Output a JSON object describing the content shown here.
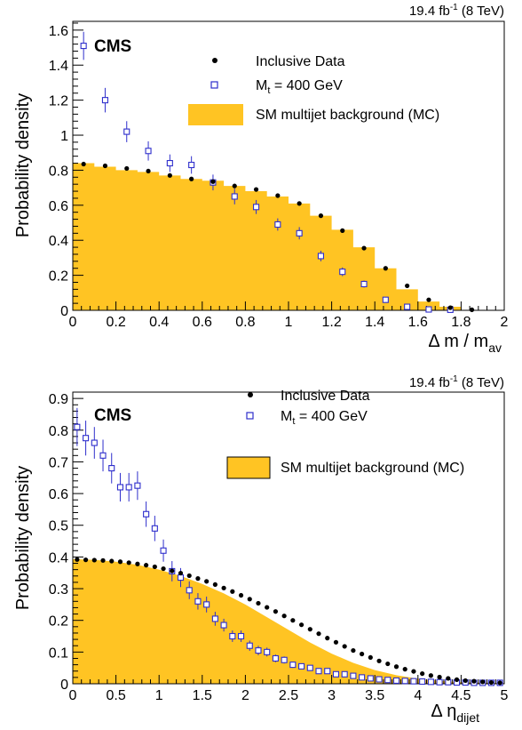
{
  "chart_data": [
    {
      "type": "bar",
      "lumi_label": "19.4 fb",
      "lumi_exp": "-1",
      "energy_label": " (8 TeV)",
      "cms_label": "CMS",
      "ylabel": "Probability density",
      "xlabel_main": "Δ m / m",
      "xlabel_sub": "av",
      "xlim": [
        0,
        2
      ],
      "ylim": [
        0,
        1.65
      ],
      "xticks": [
        0,
        0.2,
        0.4,
        0.6,
        0.8,
        1,
        1.2,
        1.4,
        1.6,
        1.8,
        2
      ],
      "yticks": [
        0,
        0.2,
        0.4,
        0.6,
        0.8,
        1,
        1.2,
        1.4,
        1.6
      ],
      "xtick_labels": [
        "0",
        "0.2",
        "0.4",
        "0.6",
        "0.8",
        "1",
        "1.2",
        "1.4",
        "1.6",
        "1.8",
        "2"
      ],
      "ytick_labels": [
        "0",
        "0.2",
        "0.4",
        "0.6",
        "0.8",
        "1",
        "1.2",
        "1.4",
        "1.6"
      ],
      "legend": {
        "data_label": "Inclusive Data",
        "signal_label_pre": "M",
        "signal_label_sub": "t",
        "signal_label_post": " = 400 GeV",
        "bkg_label": "SM multijet background (MC)"
      },
      "colors": {
        "background": "#ffc423",
        "signal": "#2e2ecc",
        "data": "#000000"
      },
      "background_mc": {
        "bin_edges": [
          0,
          0.1,
          0.2,
          0.3,
          0.4,
          0.5,
          0.6,
          0.7,
          0.8,
          0.9,
          1.0,
          1.1,
          1.2,
          1.3,
          1.4,
          1.5,
          1.6,
          1.7,
          1.8
        ],
        "values": [
          0.84,
          0.82,
          0.8,
          0.79,
          0.77,
          0.75,
          0.74,
          0.71,
          0.68,
          0.65,
          0.61,
          0.54,
          0.46,
          0.36,
          0.24,
          0.12,
          0.05,
          0.02
        ]
      },
      "inclusive_data": {
        "x": [
          0.05,
          0.15,
          0.25,
          0.35,
          0.45,
          0.55,
          0.65,
          0.75,
          0.85,
          0.95,
          1.05,
          1.15,
          1.25,
          1.35,
          1.45,
          1.55,
          1.65,
          1.75,
          1.85
        ],
        "y": [
          0.835,
          0.825,
          0.81,
          0.795,
          0.77,
          0.75,
          0.735,
          0.71,
          0.69,
          0.655,
          0.61,
          0.54,
          0.455,
          0.355,
          0.24,
          0.14,
          0.06,
          0.015,
          0.003
        ]
      },
      "signal_mt400": {
        "x": [
          0.05,
          0.15,
          0.25,
          0.35,
          0.45,
          0.55,
          0.65,
          0.75,
          0.85,
          0.95,
          1.05,
          1.15,
          1.25,
          1.35,
          1.45,
          1.55,
          1.65,
          1.75
        ],
        "y": [
          1.51,
          1.2,
          1.02,
          0.91,
          0.84,
          0.83,
          0.73,
          0.65,
          0.59,
          0.49,
          0.44,
          0.31,
          0.22,
          0.15,
          0.06,
          0.02,
          0.005,
          0.003
        ],
        "err": [
          0.08,
          0.07,
          0.06,
          0.055,
          0.05,
          0.05,
          0.045,
          0.045,
          0.04,
          0.035,
          0.035,
          0.03,
          0.025,
          0.02,
          0.015,
          0.01,
          0.005,
          0.003
        ]
      }
    },
    {
      "type": "bar",
      "lumi_label": "19.4 fb",
      "lumi_exp": "-1",
      "energy_label": " (8 TeV)",
      "cms_label": "CMS",
      "ylabel": "Probability density",
      "xlabel_main": "Δ η",
      "xlabel_sub": "dijet",
      "xlim": [
        0,
        5
      ],
      "ylim": [
        0,
        0.92
      ],
      "xticks": [
        0,
        0.5,
        1,
        1.5,
        2,
        2.5,
        3,
        3.5,
        4,
        4.5,
        5
      ],
      "yticks": [
        0,
        0.1,
        0.2,
        0.3,
        0.4,
        0.5,
        0.6,
        0.7,
        0.8,
        0.9
      ],
      "xtick_labels": [
        "0",
        "0.5",
        "1",
        "1.5",
        "2",
        "2.5",
        "3",
        "3.5",
        "4",
        "4.5",
        "5"
      ],
      "ytick_labels": [
        "0",
        "0.1",
        "0.2",
        "0.3",
        "0.4",
        "0.5",
        "0.6",
        "0.7",
        "0.8",
        "0.9"
      ],
      "legend": {
        "data_label": "Inclusive Data",
        "signal_label_pre": "M",
        "signal_label_sub": "t",
        "signal_label_post": " = 400 GeV",
        "bkg_label": "SM multijet background (MC)"
      },
      "colors": {
        "background": "#ffc423",
        "signal": "#2e2ecc",
        "data": "#000000"
      },
      "background_mc": {
        "x": [
          0.0,
          0.25,
          0.5,
          0.75,
          1.0,
          1.25,
          1.5,
          1.75,
          2.0,
          2.25,
          2.5,
          2.75,
          3.0,
          3.25,
          3.5,
          3.75,
          4.0,
          4.25,
          4.5,
          4.75,
          5.0
        ],
        "y": [
          0.393,
          0.391,
          0.385,
          0.375,
          0.36,
          0.34,
          0.315,
          0.285,
          0.25,
          0.21,
          0.17,
          0.13,
          0.095,
          0.066,
          0.043,
          0.027,
          0.016,
          0.009,
          0.005,
          0.003,
          0.002
        ]
      },
      "inclusive_data": {
        "x": [
          0.05,
          0.15,
          0.25,
          0.35,
          0.45,
          0.55,
          0.65,
          0.75,
          0.85,
          0.95,
          1.05,
          1.15,
          1.25,
          1.35,
          1.45,
          1.55,
          1.65,
          1.75,
          1.85,
          1.95,
          2.05,
          2.15,
          2.25,
          2.35,
          2.45,
          2.55,
          2.65,
          2.75,
          2.85,
          2.95,
          3.05,
          3.15,
          3.25,
          3.35,
          3.45,
          3.55,
          3.65,
          3.75,
          3.85,
          3.95,
          4.05,
          4.15,
          4.25,
          4.35,
          4.45,
          4.55,
          4.65,
          4.75,
          4.85,
          4.95
        ],
        "y": [
          0.392,
          0.391,
          0.39,
          0.389,
          0.387,
          0.385,
          0.382,
          0.378,
          0.374,
          0.369,
          0.363,
          0.356,
          0.349,
          0.341,
          0.332,
          0.323,
          0.313,
          0.302,
          0.291,
          0.279,
          0.267,
          0.254,
          0.241,
          0.228,
          0.214,
          0.2,
          0.186,
          0.172,
          0.158,
          0.144,
          0.131,
          0.118,
          0.105,
          0.094,
          0.083,
          0.072,
          0.063,
          0.054,
          0.046,
          0.039,
          0.032,
          0.026,
          0.021,
          0.017,
          0.013,
          0.01,
          0.008,
          0.006,
          0.004,
          0.003
        ]
      },
      "signal_mt400": {
        "x": [
          0.05,
          0.15,
          0.25,
          0.35,
          0.45,
          0.55,
          0.65,
          0.75,
          0.85,
          0.95,
          1.05,
          1.15,
          1.25,
          1.35,
          1.45,
          1.55,
          1.65,
          1.75,
          1.85,
          1.95,
          2.05,
          2.15,
          2.25,
          2.35,
          2.45,
          2.55,
          2.65,
          2.75,
          2.85,
          2.95,
          3.05,
          3.15,
          3.25,
          3.35,
          3.45,
          3.55,
          3.65,
          3.75,
          3.85,
          3.95,
          4.05,
          4.15,
          4.25,
          4.35,
          4.45,
          4.55,
          4.65,
          4.75,
          4.85,
          4.95
        ],
        "y": [
          0.81,
          0.775,
          0.76,
          0.72,
          0.68,
          0.62,
          0.62,
          0.625,
          0.535,
          0.49,
          0.42,
          0.355,
          0.335,
          0.295,
          0.26,
          0.25,
          0.205,
          0.185,
          0.15,
          0.15,
          0.12,
          0.105,
          0.1,
          0.08,
          0.075,
          0.06,
          0.055,
          0.05,
          0.04,
          0.04,
          0.03,
          0.03,
          0.025,
          0.02,
          0.017,
          0.014,
          0.012,
          0.01,
          0.009,
          0.008,
          0.007,
          0.006,
          0.005,
          0.005,
          0.004,
          0.004,
          0.003,
          0.003,
          0.003,
          0.003
        ],
        "err": [
          0.06,
          0.055,
          0.05,
          0.05,
          0.048,
          0.045,
          0.045,
          0.045,
          0.04,
          0.04,
          0.035,
          0.032,
          0.03,
          0.028,
          0.026,
          0.025,
          0.022,
          0.02,
          0.018,
          0.018,
          0.016,
          0.015,
          0.014,
          0.012,
          0.011,
          0.01,
          0.009,
          0.009,
          0.008,
          0.008,
          0.007,
          0.007,
          0.006,
          0.006,
          0.005,
          0.005,
          0.004,
          0.004,
          0.004,
          0.003,
          0.003,
          0.003,
          0.003,
          0.003,
          0.002,
          0.002,
          0.002,
          0.002,
          0.002,
          0.002
        ]
      }
    }
  ]
}
